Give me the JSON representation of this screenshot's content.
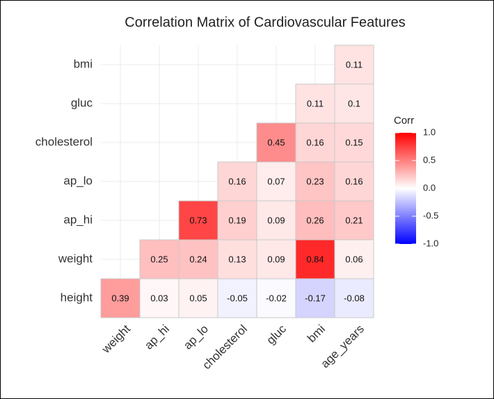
{
  "chart_data": {
    "type": "heatmap",
    "title": "Correlation Matrix of Cardiovascular Features",
    "x_categories": [
      "weight",
      "ap_hi",
      "ap_lo",
      "cholesterol",
      "gluc",
      "bmi",
      "age_years"
    ],
    "y_categories": [
      "bmi",
      "gluc",
      "cholesterol",
      "ap_lo",
      "ap_hi",
      "weight",
      "height"
    ],
    "values": [
      [
        null,
        null,
        null,
        null,
        null,
        null,
        0.11
      ],
      [
        null,
        null,
        null,
        null,
        null,
        0.11,
        0.1
      ],
      [
        null,
        null,
        null,
        null,
        0.45,
        0.16,
        0.15
      ],
      [
        null,
        null,
        null,
        0.16,
        0.07,
        0.23,
        0.16
      ],
      [
        null,
        null,
        0.73,
        0.19,
        0.09,
        0.26,
        0.21
      ],
      [
        null,
        0.25,
        0.24,
        0.13,
        0.09,
        0.84,
        0.06
      ],
      [
        0.39,
        0.03,
        0.05,
        -0.05,
        -0.02,
        -0.17,
        -0.08
      ]
    ],
    "legend_title": "Corr",
    "clim": [
      -1,
      1
    ],
    "cticks": [
      {
        "value": 1,
        "label": "1.0"
      },
      0.5,
      {
        "value": 0,
        "label": "0.0"
      },
      -0.5,
      {
        "value": -1,
        "label": "-1.0"
      }
    ],
    "colors": {
      "low": "#0000ff",
      "mid": "#ffffff",
      "high": "#ff0000"
    },
    "grid": true
  }
}
